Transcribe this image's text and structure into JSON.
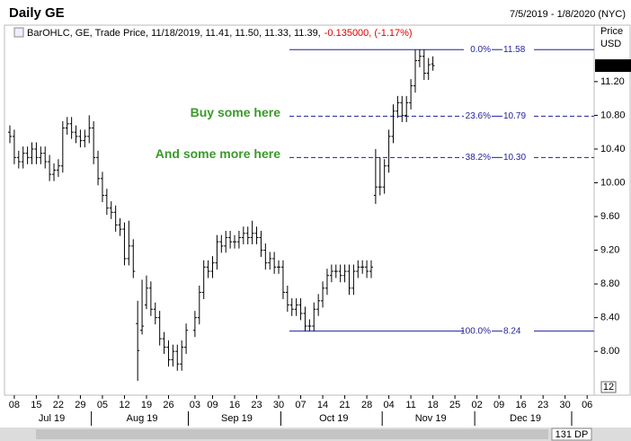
{
  "chart_data": {
    "type": "ohlc",
    "title": "Daily GE",
    "date_range": "7/5/2019 - 1/8/2020 (NYC)",
    "legend": {
      "prefix": "BarOHLC, GE, Trade Price, 11/18/2019, 11.41, 11.50, 11.33, 11.39,",
      "change": "-0.135000, (-1.17%)"
    },
    "y_axis_title": "Price",
    "y_axis_unit": "USD",
    "corner_button": "12",
    "scroll_label": "131 DP",
    "color": "#000000",
    "xlim": [
      "2019-07-05",
      "2020-01-08"
    ],
    "ylim": [
      7.48,
      11.87
    ],
    "yticks": [
      {
        "value": 8,
        "label": "8.00"
      },
      {
        "value": 8.4,
        "label": "8.40"
      },
      {
        "value": 8.8,
        "label": "8.80"
      },
      {
        "value": 9.2,
        "label": "9.20"
      },
      {
        "value": 9.6,
        "label": "9.60"
      },
      {
        "value": 10,
        "label": "10.00"
      },
      {
        "value": 10.4,
        "label": "10.40"
      },
      {
        "value": 10.8,
        "label": "10.80"
      },
      {
        "value": 11.2,
        "label": "11.20"
      }
    ],
    "last_price": {
      "value": 11.39,
      "label": "11.39"
    },
    "xticks": [
      {
        "value": "2019-07-08",
        "label": "08"
      },
      {
        "value": "2019-07-15",
        "label": "15"
      },
      {
        "value": "2019-07-22",
        "label": "22"
      },
      {
        "value": "2019-07-29",
        "label": "29"
      },
      {
        "value": "2019-08-05",
        "label": "05"
      },
      {
        "value": "2019-08-12",
        "label": "12"
      },
      {
        "value": "2019-08-19",
        "label": "19"
      },
      {
        "value": "2019-08-26",
        "label": "26"
      },
      {
        "value": "2019-09-03",
        "label": "03"
      },
      {
        "value": "2019-09-09",
        "label": "09"
      },
      {
        "value": "2019-09-16",
        "label": "16"
      },
      {
        "value": "2019-09-23",
        "label": "23"
      },
      {
        "value": "2019-09-30",
        "label": "30"
      },
      {
        "value": "2019-10-07",
        "label": "07"
      },
      {
        "value": "2019-10-14",
        "label": "14"
      },
      {
        "value": "2019-10-21",
        "label": "21"
      },
      {
        "value": "2019-10-28",
        "label": "28"
      },
      {
        "value": "2019-11-04",
        "label": "04"
      },
      {
        "value": "2019-11-11",
        "label": "11"
      },
      {
        "value": "2019-11-18",
        "label": "18"
      },
      {
        "value": "2019-11-25",
        "label": "25"
      },
      {
        "value": "2019-12-02",
        "label": "02"
      },
      {
        "value": "2019-12-09",
        "label": "09"
      },
      {
        "value": "2019-12-16",
        "label": "16"
      },
      {
        "value": "2019-12-23",
        "label": "23"
      },
      {
        "value": "2019-12-30",
        "label": "30"
      },
      {
        "value": "2020-01-06",
        "label": "06"
      }
    ],
    "months": [
      {
        "value": "2019-07",
        "label": "Jul 19"
      },
      {
        "value": "2019-08",
        "label": "Aug 19"
      },
      {
        "value": "2019-09",
        "label": "Sep 19"
      },
      {
        "value": "2019-10",
        "label": "Oct 19"
      },
      {
        "value": "2019-11",
        "label": "Nov 19"
      },
      {
        "value": "2019-12",
        "label": "Dec 19"
      }
    ],
    "fib_levels": [
      {
        "pct": "0.0%",
        "value": 11.58,
        "label": "11.58"
      },
      {
        "pct": "23.6%",
        "value": 10.79,
        "label": "10.79"
      },
      {
        "pct": "38.2%",
        "value": 10.3,
        "label": "10.30"
      },
      {
        "pct": "100.0%",
        "value": 8.24,
        "label": "8.24"
      }
    ],
    "annotations": [
      {
        "text": "Buy some here",
        "value": 10.79
      },
      {
        "text": "And some more here",
        "value": 10.3
      }
    ],
    "x": [
      "2019-07-05",
      "2019-07-08",
      "2019-07-09",
      "2019-07-10",
      "2019-07-11",
      "2019-07-12",
      "2019-07-15",
      "2019-07-16",
      "2019-07-17",
      "2019-07-18",
      "2019-07-19",
      "2019-07-22",
      "2019-07-23",
      "2019-07-24",
      "2019-07-25",
      "2019-07-26",
      "2019-07-29",
      "2019-07-30",
      "2019-07-31",
      "2019-08-01",
      "2019-08-02",
      "2019-08-05",
      "2019-08-06",
      "2019-08-07",
      "2019-08-08",
      "2019-08-09",
      "2019-08-12",
      "2019-08-13",
      "2019-08-14",
      "2019-08-15",
      "2019-08-16",
      "2019-08-19",
      "2019-08-20",
      "2019-08-21",
      "2019-08-22",
      "2019-08-23",
      "2019-08-26",
      "2019-08-27",
      "2019-08-28",
      "2019-08-29",
      "2019-08-30",
      "2019-09-03",
      "2019-09-04",
      "2019-09-05",
      "2019-09-06",
      "2019-09-09",
      "2019-09-10",
      "2019-09-11",
      "2019-09-12",
      "2019-09-13",
      "2019-09-16",
      "2019-09-17",
      "2019-09-18",
      "2019-09-19",
      "2019-09-20",
      "2019-09-23",
      "2019-09-24",
      "2019-09-25",
      "2019-09-26",
      "2019-09-27",
      "2019-09-30",
      "2019-10-01",
      "2019-10-02",
      "2019-10-03",
      "2019-10-04",
      "2019-10-07",
      "2019-10-08",
      "2019-10-09",
      "2019-10-10",
      "2019-10-11",
      "2019-10-14",
      "2019-10-15",
      "2019-10-16",
      "2019-10-17",
      "2019-10-18",
      "2019-10-21",
      "2019-10-22",
      "2019-10-23",
      "2019-10-24",
      "2019-10-25",
      "2019-10-28",
      "2019-10-29",
      "2019-10-30",
      "2019-10-31",
      "2019-11-01",
      "2019-11-04",
      "2019-11-05",
      "2019-11-06",
      "2019-11-07",
      "2019-11-08",
      "2019-11-11",
      "2019-11-12",
      "2019-11-13",
      "2019-11-14",
      "2019-11-15",
      "2019-11-18"
    ],
    "open": [
      10.6,
      10.55,
      10.3,
      10.25,
      10.35,
      10.3,
      10.4,
      10.3,
      10.35,
      10.25,
      10.1,
      10.15,
      10.2,
      10.65,
      10.7,
      10.6,
      10.55,
      10.5,
      10.55,
      10.65,
      10.3,
      10.05,
      9.85,
      9.7,
      9.65,
      9.5,
      9.45,
      9.1,
      9.25,
      8.33,
      8.25,
      8.55,
      8.75,
      8.5,
      8.4,
      8.15,
      8.05,
      7.9,
      8,
      7.85,
      8.05,
      8.25,
      8.4,
      8.7,
      9,
      8.95,
      9.05,
      9.3,
      9.25,
      9.35,
      9.3,
      9.3,
      9.35,
      9.4,
      9.35,
      9.4,
      9.35,
      9.2,
      9.05,
      9.1,
      9,
      9,
      8.7,
      8.55,
      8.5,
      8.55,
      8.45,
      8.3,
      8.3,
      8.5,
      8.6,
      8.75,
      8.9,
      8.95,
      8.95,
      8.9,
      8.95,
      8.75,
      8.95,
      9,
      9,
      8.95,
      9.85,
      9.95,
      9.95,
      10.2,
      10.55,
      10.85,
      10.95,
      10.8,
      10.95,
      11.15,
      11.45,
      11.5,
      11.3,
      11.41
    ],
    "high": [
      10.68,
      10.63,
      10.38,
      10.43,
      10.43,
      10.48,
      10.48,
      10.43,
      10.43,
      10.33,
      10.23,
      10.28,
      10.73,
      10.78,
      10.78,
      10.68,
      10.63,
      10.63,
      10.8,
      10.73,
      10.38,
      10.13,
      9.93,
      9.78,
      9.73,
      9.58,
      9.53,
      9.55,
      9.33,
      8.6,
      8.85,
      8.9,
      8.83,
      8.58,
      8.48,
      8.23,
      8.13,
      8.08,
      8.08,
      8.13,
      8.33,
      8.48,
      8.78,
      9.08,
      9.08,
      9.13,
      9.38,
      9.38,
      9.43,
      9.43,
      9.38,
      9.43,
      9.48,
      9.48,
      9.55,
      9.48,
      9.43,
      9.28,
      9.18,
      9.18,
      9.08,
      9.08,
      8.78,
      8.63,
      8.63,
      8.63,
      8.53,
      8.38,
      8.58,
      8.68,
      8.83,
      8.98,
      9.03,
      9.03,
      9.03,
      9.03,
      9.03,
      9.03,
      9.08,
      9.08,
      9.08,
      9.08,
      10.4,
      10.3,
      10.28,
      10.63,
      10.93,
      11.03,
      11.03,
      11.03,
      11.23,
      11.58,
      11.58,
      11.58,
      11.48,
      11.5
    ],
    "low": [
      10.47,
      10.22,
      10.17,
      10.17,
      10.22,
      10.22,
      10.22,
      10.22,
      10.17,
      10.02,
      10.02,
      10.07,
      10.12,
      10.57,
      10.52,
      10.47,
      10.42,
      10.42,
      10.47,
      10.22,
      9.97,
      9.77,
      9.62,
      9.57,
      9.42,
      9.37,
      9.02,
      9.02,
      8.87,
      7.65,
      8.2,
      8.5,
      8.42,
      8.32,
      8.07,
      7.97,
      7.82,
      7.82,
      7.77,
      7.77,
      7.97,
      8.17,
      8.32,
      8.62,
      8.87,
      8.87,
      8.97,
      9.17,
      9.17,
      9.22,
      9.22,
      9.22,
      9.27,
      9.27,
      9.27,
      9.27,
      9.12,
      8.97,
      8.97,
      8.92,
      8.92,
      8.62,
      8.47,
      8.42,
      8.42,
      8.37,
      8.24,
      8.24,
      8.24,
      8.42,
      8.52,
      8.67,
      8.82,
      8.87,
      8.82,
      8.82,
      8.67,
      8.67,
      8.87,
      8.92,
      8.87,
      8.87,
      9.75,
      9.85,
      9.87,
      10.12,
      10.47,
      10.77,
      10.72,
      10.72,
      10.87,
      11.07,
      11.37,
      11.22,
      11.22,
      11.33
    ],
    "close": [
      10.55,
      10.3,
      10.25,
      10.35,
      10.3,
      10.4,
      10.3,
      10.35,
      10.25,
      10.1,
      10.15,
      10.2,
      10.65,
      10.7,
      10.6,
      10.55,
      10.5,
      10.55,
      10.65,
      10.3,
      10.05,
      9.85,
      9.7,
      9.65,
      9.5,
      9.45,
      9.1,
      9.25,
      8.95,
      8.01,
      8.3,
      8.75,
      8.5,
      8.4,
      8.15,
      8.05,
      7.9,
      8,
      7.85,
      8.05,
      8.25,
      8.4,
      8.7,
      9,
      8.95,
      9.05,
      9.3,
      9.25,
      9.35,
      9.3,
      9.3,
      9.35,
      9.4,
      9.35,
      9.4,
      9.35,
      9.2,
      9.05,
      9.1,
      9,
      9,
      8.7,
      8.55,
      8.5,
      8.55,
      8.45,
      8.3,
      8.3,
      8.5,
      8.6,
      8.75,
      8.9,
      8.95,
      8.95,
      8.9,
      8.95,
      8.75,
      8.95,
      9,
      9,
      8.95,
      9,
      9.95,
      9.95,
      10.2,
      10.55,
      10.85,
      10.95,
      10.8,
      10.95,
      11.15,
      11.45,
      11.5,
      11.3,
      11.4,
      11.39
    ]
  }
}
